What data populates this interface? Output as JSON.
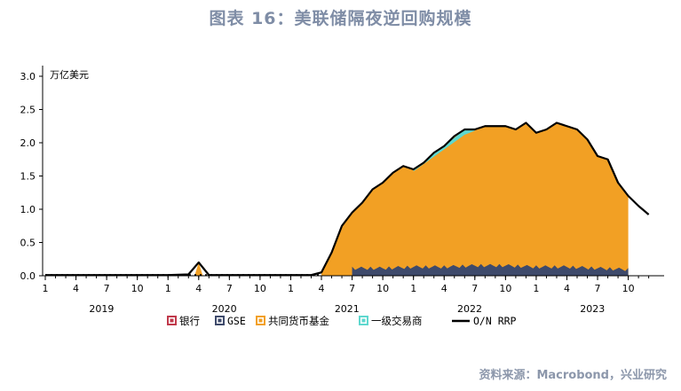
{
  "title": "图表 16：美联储隔夜逆回购规模",
  "source": "资料来源：Macrobond，兴业研究",
  "chart_data": {
    "type": "area",
    "unit_label": "万亿美元",
    "ylim": [
      0,
      3.0
    ],
    "yticks": [
      "0.0",
      "0.5",
      "1.0",
      "1.5",
      "2.0",
      "2.5",
      "3.0"
    ],
    "x_month_ticks": [
      "1",
      "4",
      "7",
      "10",
      "1",
      "4",
      "7",
      "10",
      "1",
      "4",
      "7",
      "10",
      "1",
      "4",
      "7",
      "10",
      "1",
      "4",
      "7",
      "10"
    ],
    "x_years": [
      "2019",
      "2020",
      "2021",
      "2022",
      "2023"
    ],
    "legend": [
      "银行",
      "GSE",
      "共同货币基金",
      "一级交易商",
      "O/N RRP"
    ],
    "colors": {
      "banks": "#c0394b",
      "gse": "#3e4a6b",
      "mmf": "#f2a024",
      "dealers": "#5fd8cf",
      "rrp": "#000000"
    },
    "series": [
      {
        "name": "O/N RRP",
        "x": [
          "2019-01",
          "2019-04",
          "2019-07",
          "2019-10",
          "2020-01",
          "2020-03",
          "2020-04",
          "2020-05",
          "2020-07",
          "2020-10",
          "2021-01",
          "2021-03",
          "2021-04",
          "2021-05",
          "2021-06",
          "2021-07",
          "2021-08",
          "2021-09",
          "2021-10",
          "2021-11",
          "2021-12",
          "2022-01",
          "2022-02",
          "2022-03",
          "2022-04",
          "2022-05",
          "2022-06",
          "2022-07",
          "2022-08",
          "2022-09",
          "2022-10",
          "2022-11",
          "2022-12",
          "2023-01",
          "2023-02",
          "2023-03",
          "2023-04",
          "2023-05",
          "2023-06",
          "2023-07",
          "2023-08",
          "2023-09",
          "2023-10",
          "2023-11",
          "2023-12"
        ],
        "values": [
          0.01,
          0.01,
          0.01,
          0.01,
          0.01,
          0.02,
          0.2,
          0.01,
          0.01,
          0.01,
          0.01,
          0.01,
          0.05,
          0.35,
          0.75,
          0.95,
          1.1,
          1.3,
          1.4,
          1.55,
          1.65,
          1.6,
          1.7,
          1.85,
          1.95,
          2.1,
          2.2,
          2.2,
          2.25,
          2.25,
          2.25,
          2.2,
          2.3,
          2.15,
          2.2,
          2.3,
          2.25,
          2.2,
          2.05,
          1.8,
          1.75,
          1.4,
          1.2,
          1.05,
          0.92
        ]
      },
      {
        "name": "GSE",
        "x": [
          "2021-07",
          "2021-10",
          "2022-01",
          "2022-04",
          "2022-07",
          "2022-10",
          "2023-01",
          "2023-04",
          "2023-07",
          "2023-10"
        ],
        "values": [
          0.1,
          0.1,
          0.12,
          0.12,
          0.14,
          0.14,
          0.12,
          0.12,
          0.1,
          0.08
        ]
      },
      {
        "name": "一级交易商",
        "x": [
          "2022-01",
          "2022-04",
          "2022-06",
          "2022-07"
        ],
        "values": [
          0.03,
          0.05,
          0.08,
          0.02
        ]
      }
    ]
  }
}
